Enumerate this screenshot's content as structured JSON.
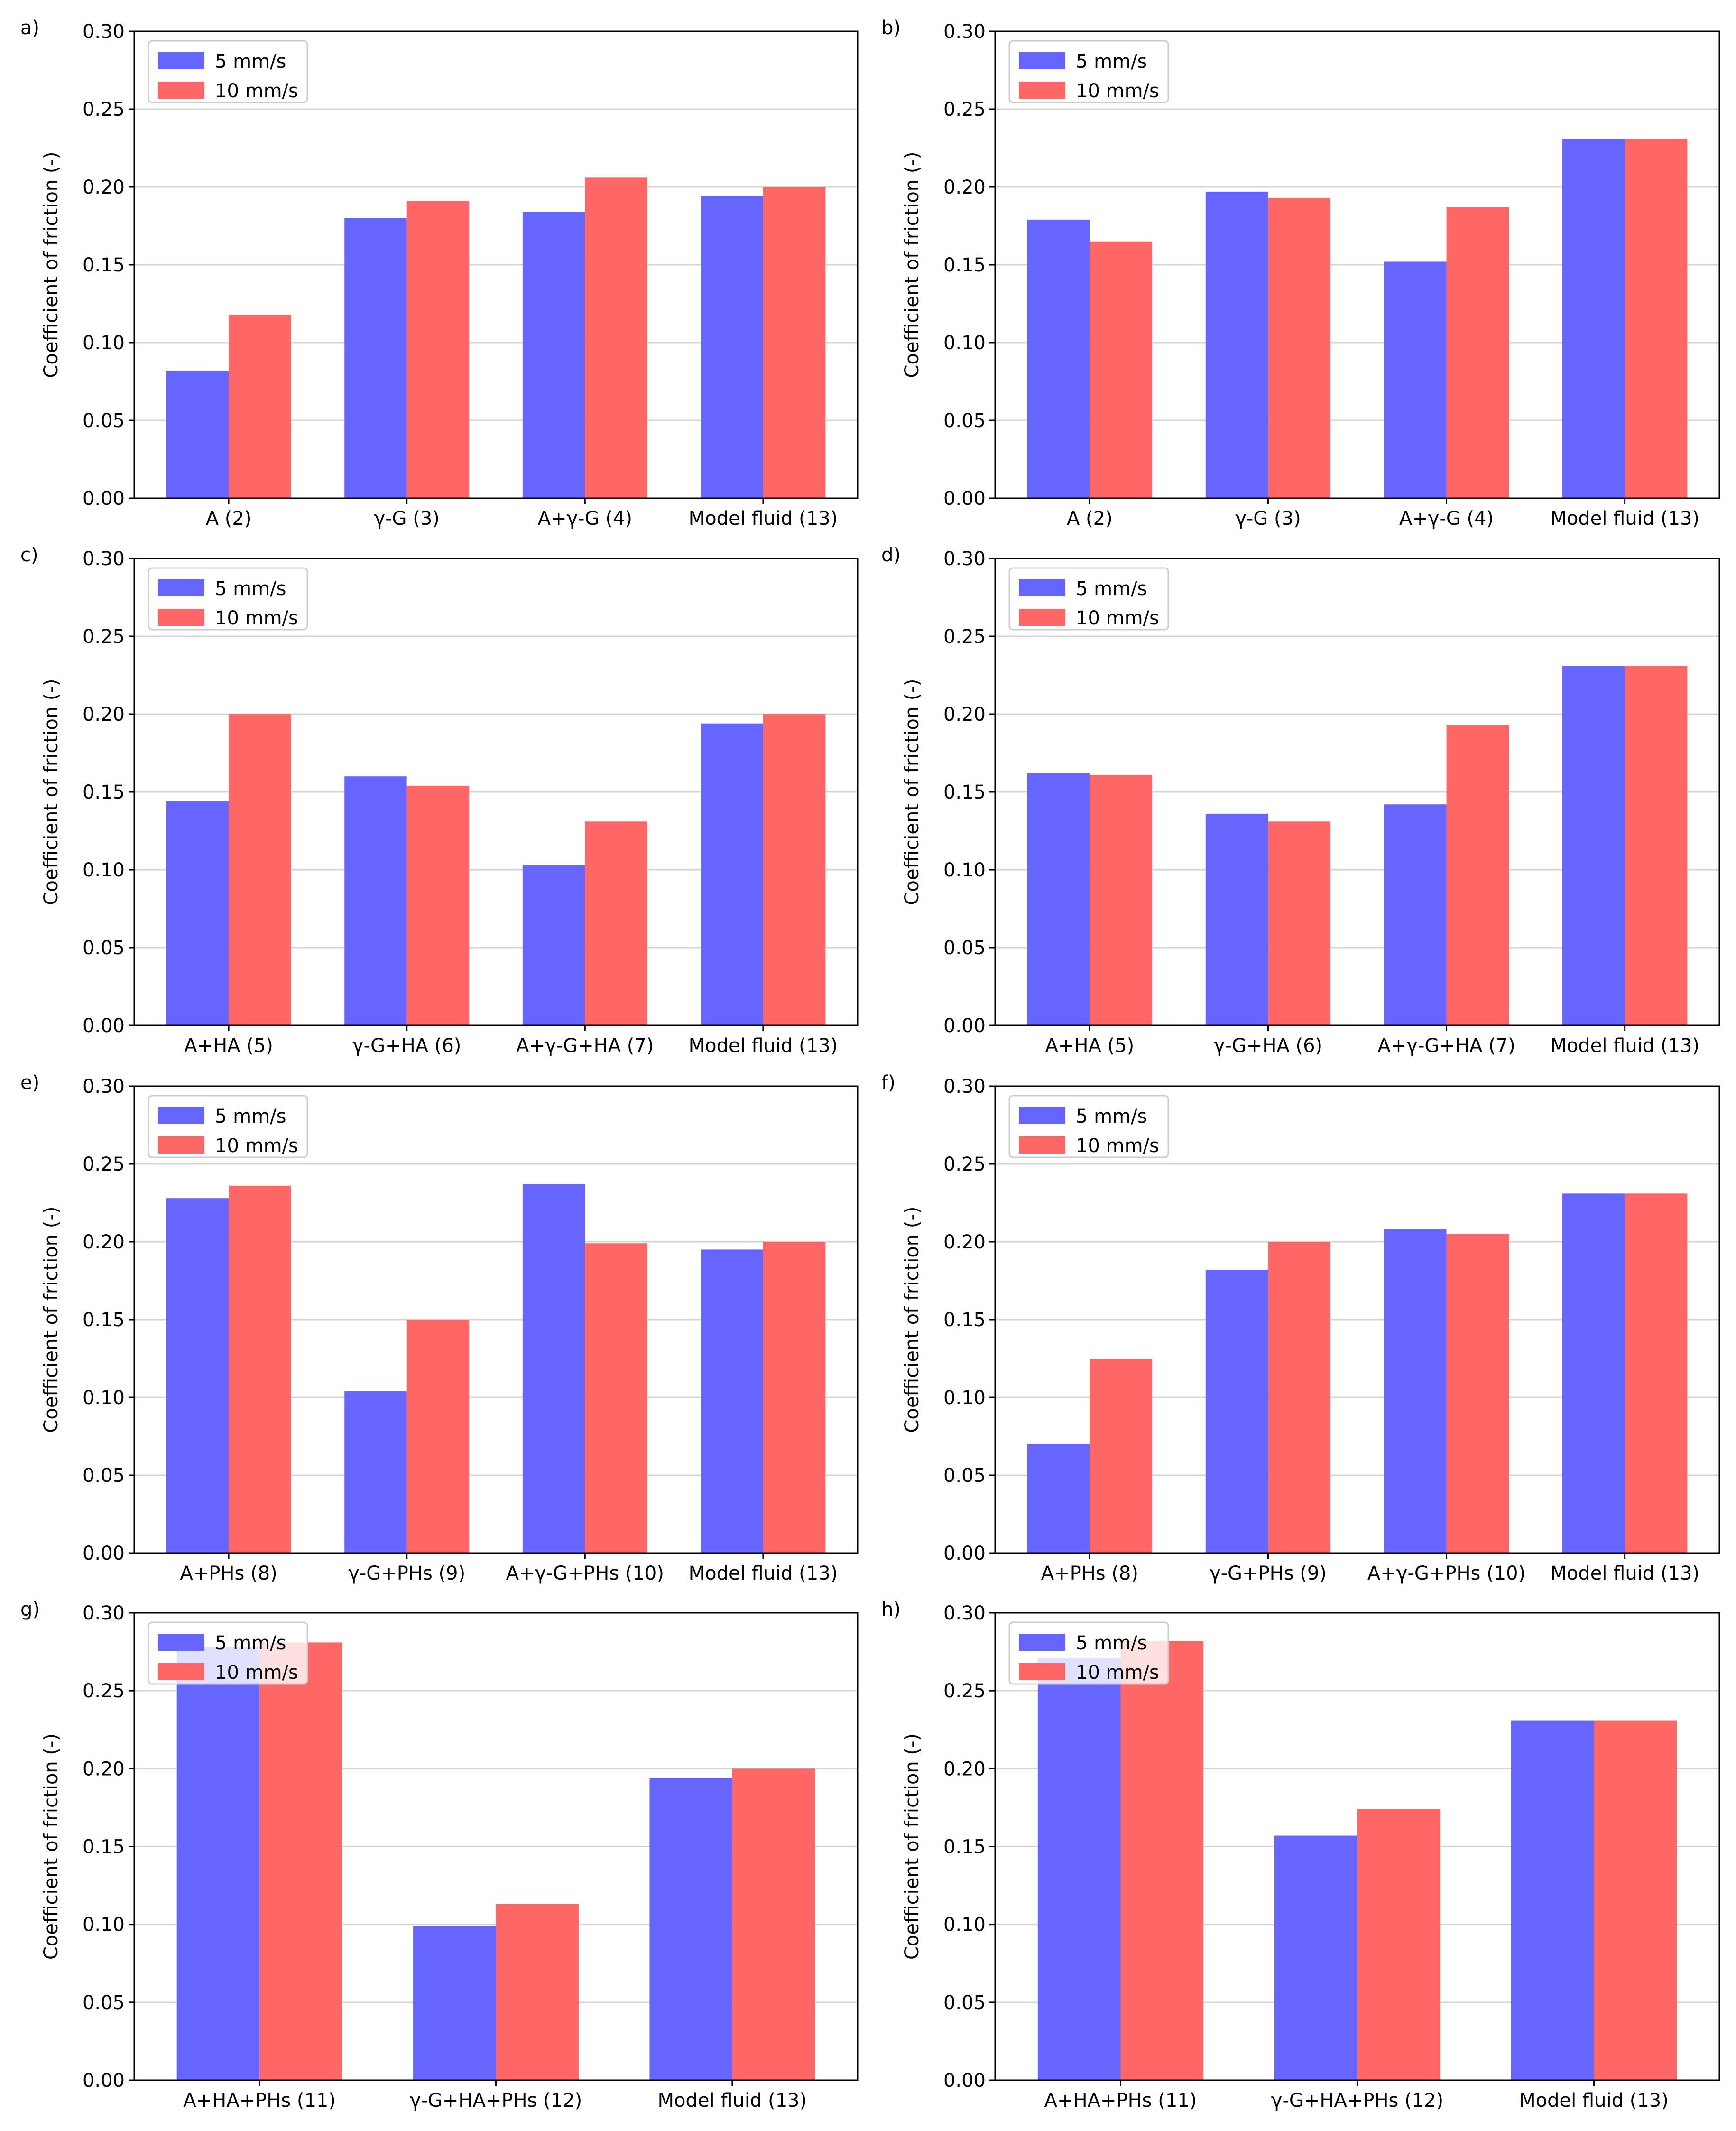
{
  "colors": {
    "series_5": "#6666ff",
    "series_10": "#ff6666",
    "grid": "#d3d3d3",
    "axes": "#000000"
  },
  "chart_data": [
    {
      "panel": "a)",
      "type": "bar",
      "categories": [
        "A (2)",
        "γ-G (3)",
        "A+γ-G (4)",
        "Model fluid (13)"
      ],
      "series": [
        {
          "name": "5 mm/s",
          "values": [
            0.082,
            0.18,
            0.184,
            0.194
          ]
        },
        {
          "name": "10 mm/s",
          "values": [
            0.118,
            0.191,
            0.206,
            0.2
          ]
        }
      ],
      "ylabel": "Coefficient of friction (-)",
      "ylim": [
        0,
        0.3
      ],
      "yticks": [
        "0.00",
        "0.05",
        "0.10",
        "0.15",
        "0.20",
        "0.25",
        "0.30"
      ],
      "grid": "y",
      "legend_loc": "upper left"
    },
    {
      "panel": "b)",
      "type": "bar",
      "categories": [
        "A (2)",
        "γ-G (3)",
        "A+γ-G (4)",
        "Model fluid (13)"
      ],
      "series": [
        {
          "name": "5 mm/s",
          "values": [
            0.179,
            0.197,
            0.152,
            0.231
          ]
        },
        {
          "name": "10 mm/s",
          "values": [
            0.165,
            0.193,
            0.187,
            0.231
          ]
        }
      ],
      "ylabel": "Coefficient of friction (-)",
      "ylim": [
        0,
        0.3
      ],
      "yticks": [
        "0.00",
        "0.05",
        "0.10",
        "0.15",
        "0.20",
        "0.25",
        "0.30"
      ],
      "grid": "y",
      "legend_loc": "upper left"
    },
    {
      "panel": "c)",
      "type": "bar",
      "categories": [
        "A+HA (5)",
        "γ-G+HA (6)",
        "A+γ-G+HA (7)",
        "Model fluid (13)"
      ],
      "series": [
        {
          "name": "5 mm/s",
          "values": [
            0.144,
            0.16,
            0.103,
            0.194
          ]
        },
        {
          "name": "10 mm/s",
          "values": [
            0.2,
            0.154,
            0.131,
            0.2
          ]
        }
      ],
      "ylabel": "Coefficient of friction (-)",
      "ylim": [
        0,
        0.3
      ],
      "yticks": [
        "0.00",
        "0.05",
        "0.10",
        "0.15",
        "0.20",
        "0.25",
        "0.30"
      ],
      "grid": "y",
      "legend_loc": "upper left"
    },
    {
      "panel": "d)",
      "type": "bar",
      "categories": [
        "A+HA (5)",
        "γ-G+HA (6)",
        "A+γ-G+HA (7)",
        "Model fluid (13)"
      ],
      "series": [
        {
          "name": "5 mm/s",
          "values": [
            0.162,
            0.136,
            0.142,
            0.231
          ]
        },
        {
          "name": "10 mm/s",
          "values": [
            0.161,
            0.131,
            0.193,
            0.231
          ]
        }
      ],
      "ylabel": "Coefficient of friction (-)",
      "ylim": [
        0,
        0.3
      ],
      "yticks": [
        "0.00",
        "0.05",
        "0.10",
        "0.15",
        "0.20",
        "0.25",
        "0.30"
      ],
      "grid": "y",
      "legend_loc": "upper left"
    },
    {
      "panel": "e)",
      "type": "bar",
      "categories": [
        "A+PHs (8)",
        "γ-G+PHs (9)",
        "A+γ-G+PHs (10)",
        "Model fluid (13)"
      ],
      "series": [
        {
          "name": "5 mm/s",
          "values": [
            0.228,
            0.104,
            0.237,
            0.195
          ]
        },
        {
          "name": "10 mm/s",
          "values": [
            0.236,
            0.15,
            0.199,
            0.2
          ]
        }
      ],
      "ylabel": "Coefficient of friction (-)",
      "ylim": [
        0,
        0.3
      ],
      "yticks": [
        "0.00",
        "0.05",
        "0.10",
        "0.15",
        "0.20",
        "0.25",
        "0.30"
      ],
      "grid": "y",
      "legend_loc": "upper left"
    },
    {
      "panel": "f)",
      "type": "bar",
      "categories": [
        "A+PHs (8)",
        "γ-G+PHs (9)",
        "A+γ-G+PHs (10)",
        "Model fluid (13)"
      ],
      "series": [
        {
          "name": "5 mm/s",
          "values": [
            0.07,
            0.182,
            0.208,
            0.231
          ]
        },
        {
          "name": "10 mm/s",
          "values": [
            0.125,
            0.2,
            0.205,
            0.231
          ]
        }
      ],
      "ylabel": "Coefficient of friction (-)",
      "ylim": [
        0,
        0.3
      ],
      "yticks": [
        "0.00",
        "0.05",
        "0.10",
        "0.15",
        "0.20",
        "0.25",
        "0.30"
      ],
      "grid": "y",
      "legend_loc": "upper left"
    },
    {
      "panel": "g)",
      "type": "bar",
      "categories": [
        "A+HA+PHs (11)",
        "γ-G+HA+PHs (12)",
        "Model fluid (13)"
      ],
      "series": [
        {
          "name": "5 mm/s",
          "values": [
            0.278,
            0.099,
            0.194
          ]
        },
        {
          "name": "10 mm/s",
          "values": [
            0.281,
            0.113,
            0.2
          ]
        }
      ],
      "ylabel": "Coefficient of friction (-)",
      "ylim": [
        0,
        0.3
      ],
      "yticks": [
        "0.00",
        "0.05",
        "0.10",
        "0.15",
        "0.20",
        "0.25",
        "0.30"
      ],
      "grid": "y",
      "legend_loc": "upper left"
    },
    {
      "panel": "h)",
      "type": "bar",
      "categories": [
        "A+HA+PHs (11)",
        "γ-G+HA+PHs (12)",
        "Model fluid (13)"
      ],
      "series": [
        {
          "name": "5 mm/s",
          "values": [
            0.271,
            0.157,
            0.231
          ]
        },
        {
          "name": "10 mm/s",
          "values": [
            0.282,
            0.174,
            0.231
          ]
        }
      ],
      "ylabel": "Coefficient of friction (-)",
      "ylim": [
        0,
        0.3
      ],
      "yticks": [
        "0.00",
        "0.05",
        "0.10",
        "0.15",
        "0.20",
        "0.25",
        "0.30"
      ],
      "grid": "y",
      "legend_loc": "upper left"
    }
  ]
}
